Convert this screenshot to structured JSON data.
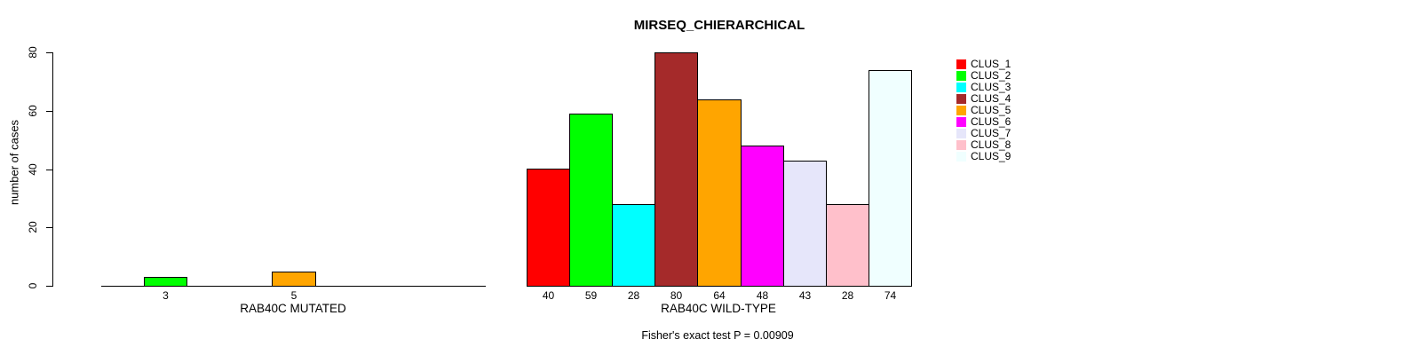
{
  "chart_data": {
    "type": "bar",
    "title": "MIRSEQ_CHIERARCHICAL",
    "ylabel": "number of cases",
    "ylim": [
      0,
      80
    ],
    "yticks": [
      0,
      20,
      40,
      60,
      80
    ],
    "grid": false,
    "legend_position": "right",
    "clusters": [
      {
        "label": "CLUS_1",
        "color": "#ff0000"
      },
      {
        "label": "CLUS_2",
        "color": "#00ff00"
      },
      {
        "label": "CLUS_3",
        "color": "#00ffff"
      },
      {
        "label": "CLUS_4",
        "color": "#a52a2a"
      },
      {
        "label": "CLUS_5",
        "color": "#ffa500"
      },
      {
        "label": "CLUS_6",
        "color": "#ff00ff"
      },
      {
        "label": "CLUS_7",
        "color": "#e6e6fa"
      },
      {
        "label": "CLUS_8",
        "color": "#ffc0cb"
      },
      {
        "label": "CLUS_9",
        "color": "#f0ffff"
      }
    ],
    "panels": [
      {
        "id": "mutated",
        "xlabel": "RAB40C MUTATED",
        "values": [
          0,
          3,
          0,
          0,
          5,
          0,
          0,
          0,
          0
        ]
      },
      {
        "id": "wildtype",
        "xlabel": "RAB40C WILD-TYPE",
        "values": [
          40,
          59,
          28,
          80,
          64,
          48,
          43,
          28,
          74
        ]
      }
    ],
    "annotation": "Fisher's exact test P = 0.00909"
  }
}
